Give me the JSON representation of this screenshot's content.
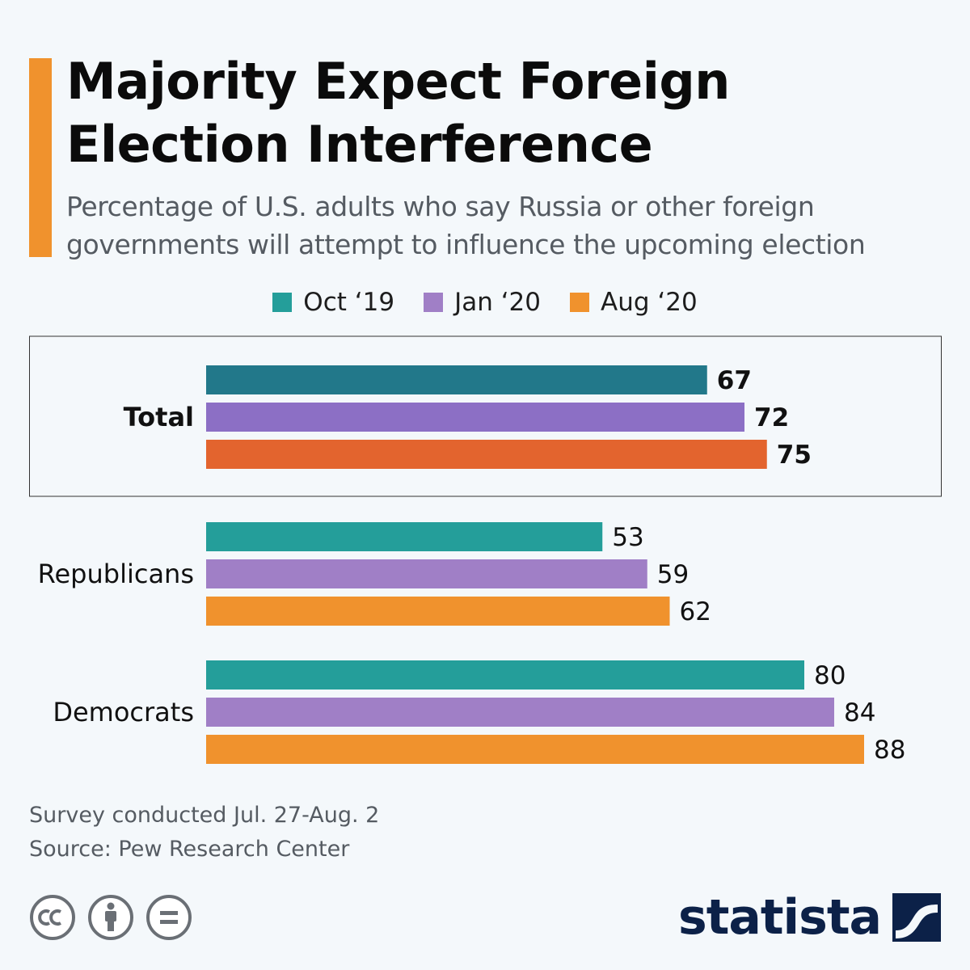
{
  "title": "Majority Expect Foreign\nElection Interference",
  "subtitle": "Percentage of U.S. adults who say Russia or other foreign\ngovernments will attempt to influence the upcoming election",
  "legend": [
    {
      "label": "Oct ‘19",
      "color": "#249e9a"
    },
    {
      "label": "Jan ‘20",
      "color": "#a07fc6"
    },
    {
      "label": "Aug ‘20",
      "color": "#f0922d"
    }
  ],
  "chart_data": {
    "type": "bar",
    "orientation": "horizontal",
    "title": "Majority Expect Foreign Election Interference",
    "subtitle": "Percentage of U.S. adults who say Russia or other foreign governments will attempt to influence the upcoming election",
    "categories": [
      "Total",
      "Republicans",
      "Democrats"
    ],
    "series": [
      {
        "name": "Oct ‘19",
        "values": [
          67,
          53,
          80
        ]
      },
      {
        "name": "Jan ‘20",
        "values": [
          72,
          59,
          84
        ]
      },
      {
        "name": "Aug ‘20",
        "values": [
          75,
          62,
          88
        ]
      }
    ],
    "highlighted_category": "Total",
    "highlight_colors": [
      "#22788a",
      "#8c6fc5",
      "#e3642e"
    ],
    "series_colors": [
      "#249e9a",
      "#a07fc6",
      "#f0922d"
    ],
    "xlim": [
      0,
      100
    ],
    "grid": false,
    "legend_position": "top-center"
  },
  "footnote": {
    "survey": "Survey conducted Jul. 27-Aug. 2",
    "source": "Source: Pew Research Center"
  },
  "license_icons": [
    "creative-commons-icon",
    "attribution-icon",
    "no-derivatives-icon"
  ],
  "brand": {
    "name": "statista",
    "color": "#0c2148"
  }
}
